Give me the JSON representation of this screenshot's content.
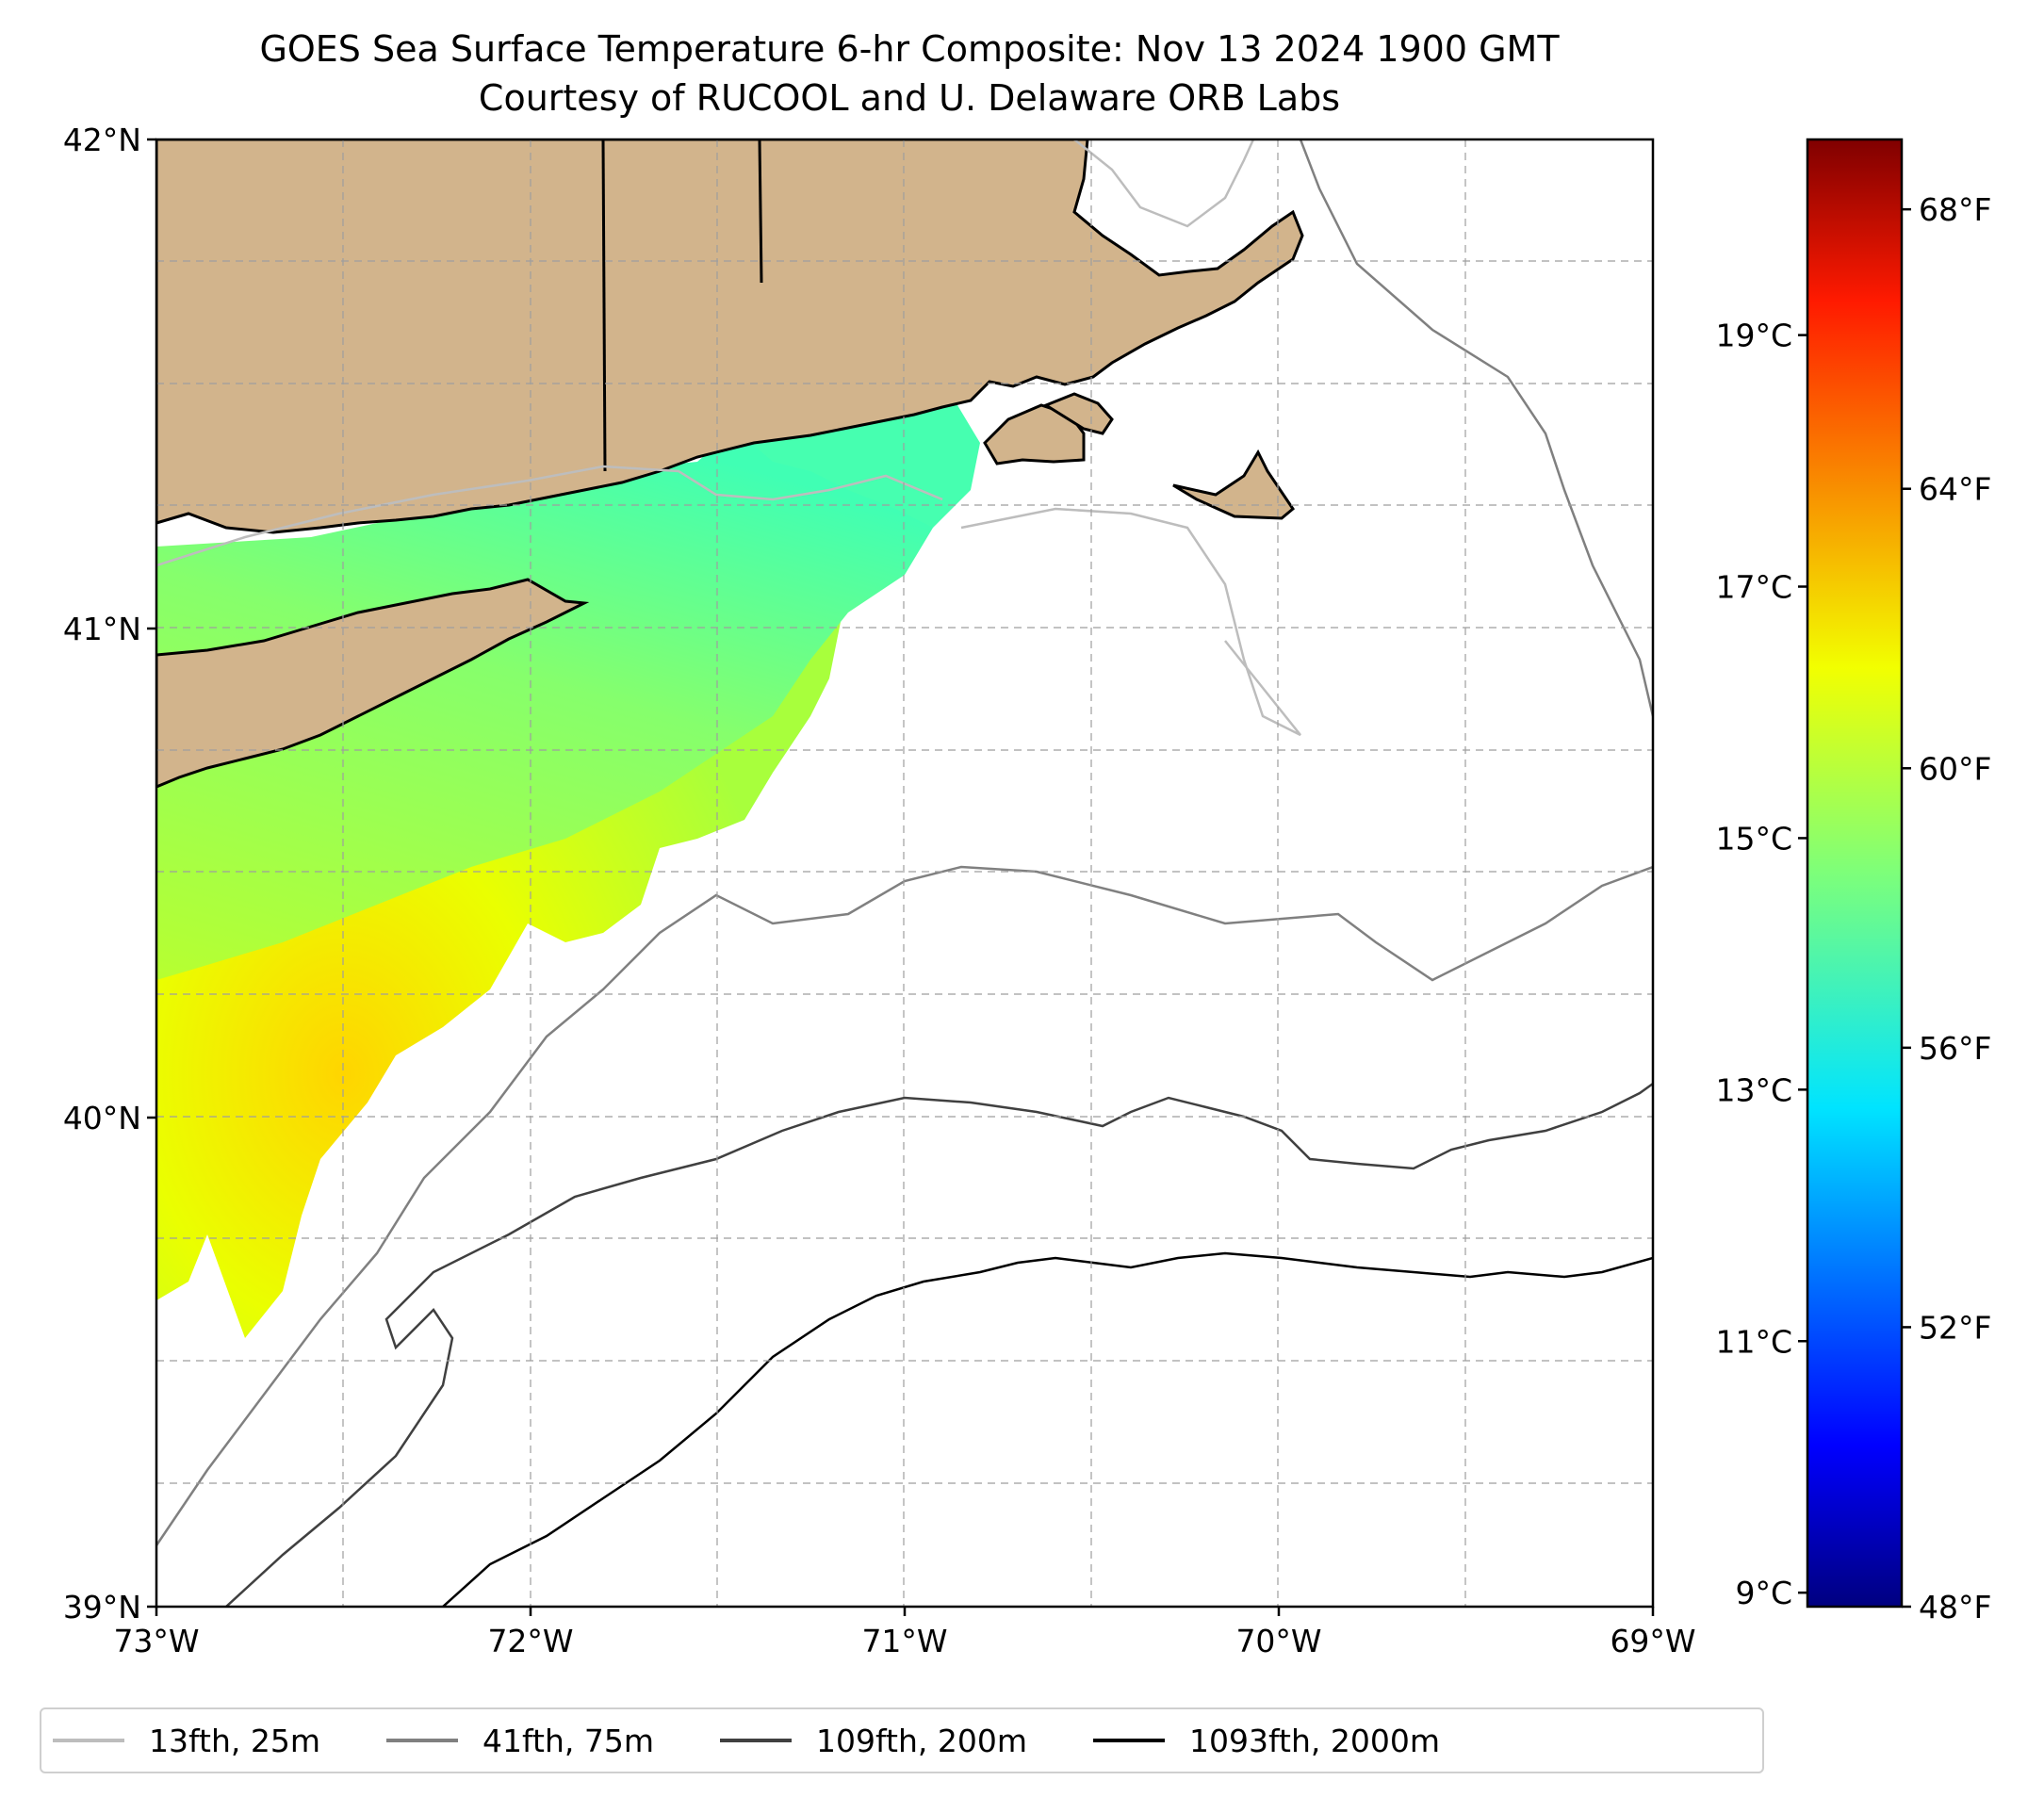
{
  "title": {
    "line1": "GOES Sea Surface Temperature 6-hr Composite: Nov 13 2024 1900 GMT",
    "line2": "Courtesy of RUCOOL and U. Delaware ORB Labs"
  },
  "map": {
    "extent": {
      "lon": [
        -73,
        -69
      ],
      "lat": [
        39,
        42
      ]
    },
    "lon_ticks": [
      {
        "value": -73,
        "label": "73°W"
      },
      {
        "value": -72,
        "label": "72°W"
      },
      {
        "value": -71,
        "label": "71°W"
      },
      {
        "value": -70,
        "label": "70°W"
      },
      {
        "value": -69,
        "label": "69°W"
      }
    ],
    "lat_ticks": [
      {
        "value": 42,
        "label": "42°N"
      },
      {
        "value": 41,
        "label": "41°N"
      },
      {
        "value": 40,
        "label": "40°N"
      },
      {
        "value": 39,
        "label": "39°N"
      }
    ],
    "grid": "dashed",
    "land_color": "#d2b48c",
    "colormap": "jet"
  },
  "colorbar": {
    "range_f": [
      48,
      69
    ],
    "fahrenheit_ticks": [
      {
        "value": 48,
        "label": "48°F"
      },
      {
        "value": 52,
        "label": "52°F"
      },
      {
        "value": 56,
        "label": "56°F"
      },
      {
        "value": 60,
        "label": "60°F"
      },
      {
        "value": 64,
        "label": "64°F"
      },
      {
        "value": 68,
        "label": "68°F"
      }
    ],
    "celsius_ticks": [
      {
        "value": 9,
        "label": "9°C"
      },
      {
        "value": 11,
        "label": "11°C"
      },
      {
        "value": 13,
        "label": "13°C"
      },
      {
        "value": 15,
        "label": "15°C"
      },
      {
        "value": 17,
        "label": "17°C"
      },
      {
        "value": 19,
        "label": "19°C"
      }
    ]
  },
  "legend": {
    "position": "bottom",
    "items": [
      {
        "label": "13fth, 25m",
        "color": "#bdbdbd"
      },
      {
        "label": "41fth, 75m",
        "color": "#808080"
      },
      {
        "label": "109fth, 200m",
        "color": "#404040"
      },
      {
        "label": "1093fth, 2000m",
        "color": "#000000"
      }
    ]
  }
}
